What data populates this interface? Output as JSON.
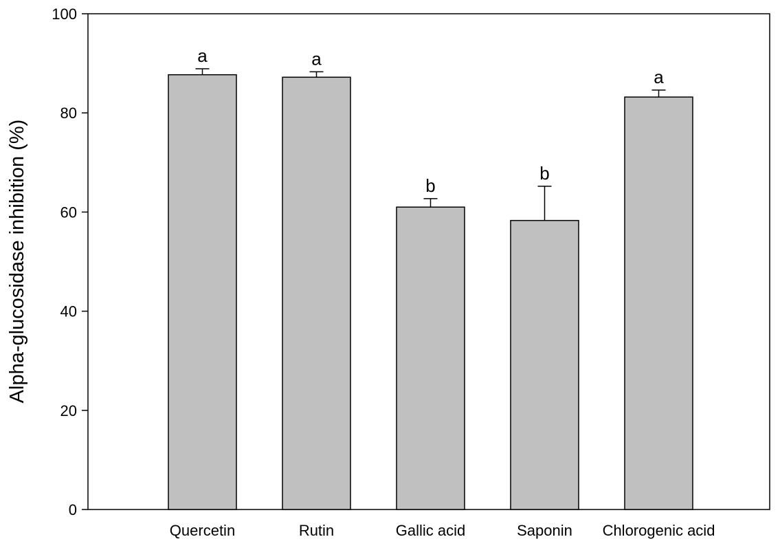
{
  "chart_data": {
    "type": "bar",
    "title": "",
    "xlabel": "",
    "ylabel": "Alpha-glucosidase inhibition (%)",
    "ylim": [
      0,
      100
    ],
    "yticks": [
      0,
      20,
      40,
      60,
      80,
      100
    ],
    "ytick_labels": [
      "0",
      "20",
      "40",
      "60",
      "80",
      "100"
    ],
    "grid": false,
    "legend": "none",
    "bar_color": "#c0c0c0",
    "edge_color": "#000000",
    "categories": [
      "Quercetin",
      "Rutin",
      "Gallic acid",
      "Saponin",
      "Chlorogenic acid"
    ],
    "values": [
      87.7,
      87.2,
      61.0,
      58.3,
      83.2
    ],
    "error_upper": [
      1.2,
      1.1,
      1.7,
      6.9,
      1.4
    ],
    "significance_labels": [
      "a",
      "a",
      "b",
      "b",
      "a"
    ]
  }
}
